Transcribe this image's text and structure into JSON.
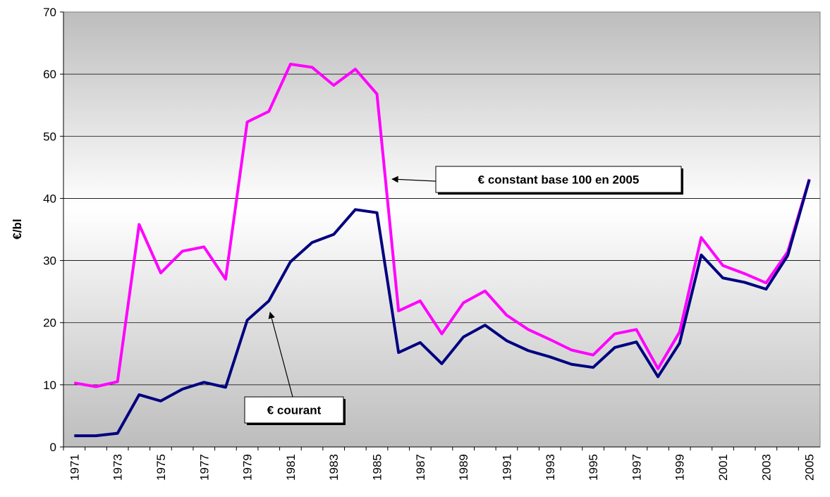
{
  "chart_data": {
    "type": "line",
    "ylabel": "€/bl",
    "categories": [
      "1971",
      null,
      "1973",
      null,
      "1975",
      null,
      "1977",
      null,
      "1979",
      null,
      "1981",
      null,
      "1983",
      null,
      "1985",
      null,
      "1987",
      null,
      "1989",
      null,
      "1991",
      null,
      "1993",
      null,
      "1995",
      null,
      "1997",
      null,
      "1999",
      null,
      "2001",
      null,
      "2003",
      null,
      "2005"
    ],
    "series": [
      {
        "name": "€ constant base 100 en 2005",
        "color": "#ff00ff",
        "values": [
          10.3,
          9.7,
          10.5,
          35.8,
          28.0,
          31.5,
          32.2,
          27.0,
          52.3,
          54.0,
          61.6,
          61.1,
          58.2,
          60.8,
          56.8,
          21.9,
          23.5,
          18.2,
          23.2,
          25.1,
          21.2,
          18.9,
          17.3,
          15.6,
          14.8,
          18.2,
          18.9,
          12.6,
          18.5,
          33.7,
          29.2,
          27.9,
          26.4,
          31.4,
          43.1
        ]
      },
      {
        "name": "€ courant",
        "color": "#000080",
        "values": [
          1.8,
          1.8,
          2.2,
          8.4,
          7.4,
          9.3,
          10.4,
          9.6,
          20.4,
          23.5,
          29.8,
          32.9,
          34.2,
          38.2,
          37.7,
          15.2,
          16.8,
          13.4,
          17.7,
          19.6,
          17.1,
          15.5,
          14.5,
          13.3,
          12.8,
          16.0,
          16.9,
          11.3,
          16.7,
          30.9,
          27.2,
          26.5,
          25.4,
          30.8,
          43.0
        ]
      }
    ],
    "ylim": [
      0,
      70
    ],
    "yticks": [
      0,
      10,
      20,
      30,
      40,
      50,
      60,
      70
    ],
    "grid": true
  }
}
